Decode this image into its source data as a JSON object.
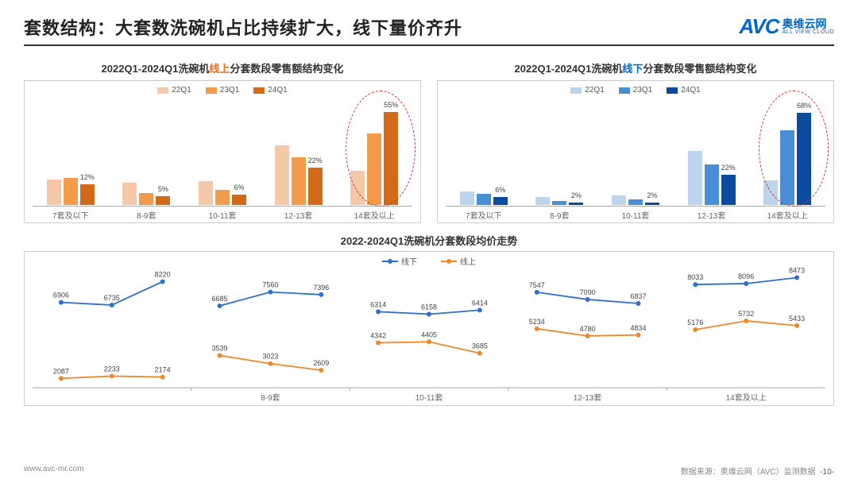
{
  "header": {
    "title": "套数结构：大套数洗碗机占比持续扩大，线下量价齐升",
    "logo_mark": "AVC",
    "logo_cn": "奥维云网",
    "logo_en": "ALL VIEW CLOUD"
  },
  "colors": {
    "orange_light": "#f5c8a9",
    "orange_mid": "#f39a4b",
    "orange_dark": "#d36a1a",
    "blue_light": "#bcd4ee",
    "blue_mid": "#4a8ed6",
    "blue_dark": "#0a4b9e",
    "line_blue": "#2f6fd0",
    "line_orange": "#ed882a",
    "border": "#cccccc",
    "highlight": "#d9302c"
  },
  "chart_online": {
    "title_pre": "2022Q1-2024Q1洗碗机",
    "title_hl": "线上",
    "title_post": "分套数段零售额结构变化",
    "legend": [
      "22Q1",
      "23Q1",
      "24Q1"
    ],
    "categories": [
      "7套及以下",
      "8-9套",
      "10-11套",
      "12-13套",
      "14套及以上"
    ],
    "series": [
      {
        "values": [
          15,
          13,
          14,
          35,
          20
        ],
        "color": "#f5c8a9"
      },
      {
        "values": [
          16,
          7,
          9,
          28,
          42
        ],
        "color": "#f39a4b"
      },
      {
        "values": [
          12,
          5,
          6,
          22,
          55
        ],
        "color": "#d36a1a"
      }
    ],
    "labels": [
      {
        "group": 0,
        "bar": 2,
        "text": "12%"
      },
      {
        "group": 1,
        "bar": 2,
        "text": "5%"
      },
      {
        "group": 2,
        "bar": 2,
        "text": "6%"
      },
      {
        "group": 3,
        "bar": 2,
        "text": "22%"
      },
      {
        "group": 4,
        "bar": 2,
        "text": "55%"
      }
    ],
    "ymax": 60,
    "highlight_group": 4
  },
  "chart_offline": {
    "title_pre": "2022Q1-2024Q1洗碗机",
    "title_hl": "线下",
    "title_post": "分套数段零售额结构变化",
    "legend": [
      "22Q1",
      "23Q1",
      "24Q1"
    ],
    "categories": [
      "7套及以下",
      "8-9套",
      "10-11套",
      "12-13套",
      "14套及以上"
    ],
    "series": [
      {
        "values": [
          10,
          6,
          7,
          40,
          18
        ],
        "color": "#bcd4ee"
      },
      {
        "values": [
          8,
          3,
          4,
          30,
          55
        ],
        "color": "#4a8ed6"
      },
      {
        "values": [
          6,
          2,
          2,
          22,
          68
        ],
        "color": "#0a4b9e"
      }
    ],
    "labels": [
      {
        "group": 0,
        "bar": 2,
        "text": "6%"
      },
      {
        "group": 1,
        "bar": 2,
        "text": "2%"
      },
      {
        "group": 2,
        "bar": 2,
        "text": "2%"
      },
      {
        "group": 3,
        "bar": 2,
        "text": "22%"
      },
      {
        "group": 4,
        "bar": 2,
        "text": "68%"
      }
    ],
    "ymax": 75,
    "highlight_group": 4
  },
  "line_chart": {
    "title": "2022-2024Q1洗碗机分套数段均价走势",
    "legend": [
      {
        "label": "线下",
        "color": "#2f6fd0"
      },
      {
        "label": "线上",
        "color": "#ed882a"
      }
    ],
    "panels": [
      "8-9套",
      "10-11套",
      "12-13套",
      "14套及以上"
    ],
    "panel_left": {
      "x_label": "",
      "offline": [
        6906,
        6735,
        8220
      ],
      "online": [
        2087,
        2233,
        2174
      ]
    },
    "data": [
      {
        "offline": [
          6685,
          7560,
          7396
        ],
        "online": [
          3539,
          3023,
          2609
        ]
      },
      {
        "offline": [
          6314,
          6158,
          6414
        ],
        "online": [
          4342,
          4405,
          3685
        ]
      },
      {
        "offline": [
          7547,
          7090,
          6837
        ],
        "online": [
          5234,
          4780,
          4834
        ]
      },
      {
        "offline": [
          8033,
          8096,
          8473
        ],
        "online": [
          5176,
          5732,
          5433
        ]
      }
    ],
    "ymin": 1500,
    "ymax": 9000
  },
  "footer": {
    "url": "www.avc-mr.com",
    "source": "数据来源：奥维云网（AVC）监测数据",
    "page": "-10-"
  }
}
